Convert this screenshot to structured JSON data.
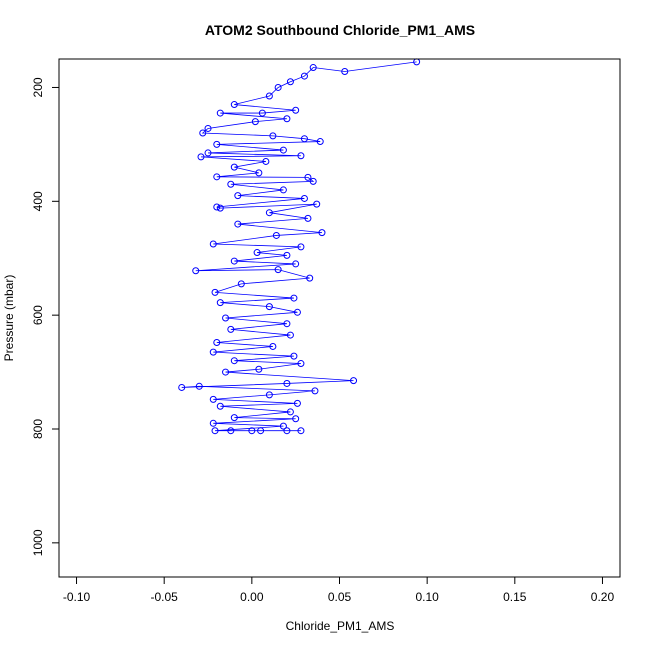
{
  "chart_data": {
    "type": "scatter",
    "title": "ATOM2 Southbound Chloride_PM1_AMS",
    "xlabel": "Chloride_PM1_AMS",
    "ylabel": "Pressure (mbar)",
    "xlim": [
      -0.11,
      0.21
    ],
    "ylim": [
      150,
      1060
    ],
    "y_reversed": true,
    "grid": false,
    "legend": "none",
    "x_ticks": [
      "-0.10",
      "-0.05",
      "0.00",
      "0.05",
      "0.10",
      "0.15",
      "0.20"
    ],
    "x_tick_values": [
      -0.1,
      -0.05,
      0.0,
      0.05,
      0.1,
      0.15,
      0.2
    ],
    "y_ticks": [
      "200",
      "400",
      "600",
      "800",
      "1000"
    ],
    "y_tick_values": [
      200,
      400,
      600,
      800,
      1000
    ],
    "marker": "open-circle",
    "connected": true,
    "color": "#0000ff",
    "series": [
      {
        "values_note_free": true,
        "points": [
          [
            0.094,
            155
          ],
          [
            0.053,
            172
          ],
          [
            0.035,
            165
          ],
          [
            0.03,
            180
          ],
          [
            0.022,
            190
          ],
          [
            0.015,
            200
          ],
          [
            0.01,
            215
          ],
          [
            -0.01,
            230
          ],
          [
            0.025,
            240
          ],
          [
            0.006,
            245
          ],
          [
            -0.018,
            245
          ],
          [
            0.02,
            255
          ],
          [
            0.002,
            260
          ],
          [
            -0.025,
            272
          ],
          [
            -0.028,
            280
          ],
          [
            0.012,
            285
          ],
          [
            0.03,
            290
          ],
          [
            0.039,
            295
          ],
          [
            -0.02,
            300
          ],
          [
            0.018,
            310
          ],
          [
            -0.025,
            315
          ],
          [
            0.028,
            320
          ],
          [
            -0.029,
            322
          ],
          [
            0.008,
            330
          ],
          [
            -0.01,
            340
          ],
          [
            0.004,
            350
          ],
          [
            -0.02,
            357
          ],
          [
            0.032,
            358
          ],
          [
            0.035,
            365
          ],
          [
            -0.012,
            370
          ],
          [
            0.018,
            380
          ],
          [
            -0.008,
            390
          ],
          [
            0.03,
            395
          ],
          [
            -0.02,
            410
          ],
          [
            -0.018,
            412
          ],
          [
            0.037,
            405
          ],
          [
            0.01,
            420
          ],
          [
            0.032,
            430
          ],
          [
            -0.008,
            440
          ],
          [
            0.04,
            455
          ],
          [
            0.014,
            460
          ],
          [
            -0.022,
            475
          ],
          [
            0.028,
            480
          ],
          [
            0.003,
            490
          ],
          [
            0.02,
            495
          ],
          [
            -0.01,
            505
          ],
          [
            0.025,
            510
          ],
          [
            -0.032,
            522
          ],
          [
            0.015,
            520
          ],
          [
            0.033,
            535
          ],
          [
            -0.006,
            545
          ],
          [
            -0.021,
            560
          ],
          [
            0.024,
            570
          ],
          [
            -0.018,
            578
          ],
          [
            0.01,
            585
          ],
          [
            0.026,
            595
          ],
          [
            -0.015,
            605
          ],
          [
            0.02,
            615
          ],
          [
            -0.012,
            625
          ],
          [
            0.022,
            635
          ],
          [
            -0.02,
            648
          ],
          [
            0.012,
            655
          ],
          [
            -0.022,
            665
          ],
          [
            0.024,
            672
          ],
          [
            -0.01,
            680
          ],
          [
            0.028,
            685
          ],
          [
            0.004,
            695
          ],
          [
            -0.015,
            700
          ],
          [
            0.058,
            715
          ],
          [
            0.02,
            720
          ],
          [
            -0.04,
            727
          ],
          [
            -0.03,
            725
          ],
          [
            0.036,
            733
          ],
          [
            0.01,
            740
          ],
          [
            -0.022,
            748
          ],
          [
            0.026,
            755
          ],
          [
            -0.018,
            760
          ],
          [
            0.022,
            770
          ],
          [
            -0.01,
            780
          ],
          [
            0.025,
            782
          ],
          [
            -0.022,
            790
          ],
          [
            0.018,
            795
          ],
          [
            -0.021,
            803
          ],
          [
            0.028,
            803
          ],
          [
            0.005,
            803
          ],
          [
            -0.012,
            803
          ],
          [
            0.02,
            803
          ],
          [
            0.0,
            803
          ]
        ]
      }
    ]
  }
}
